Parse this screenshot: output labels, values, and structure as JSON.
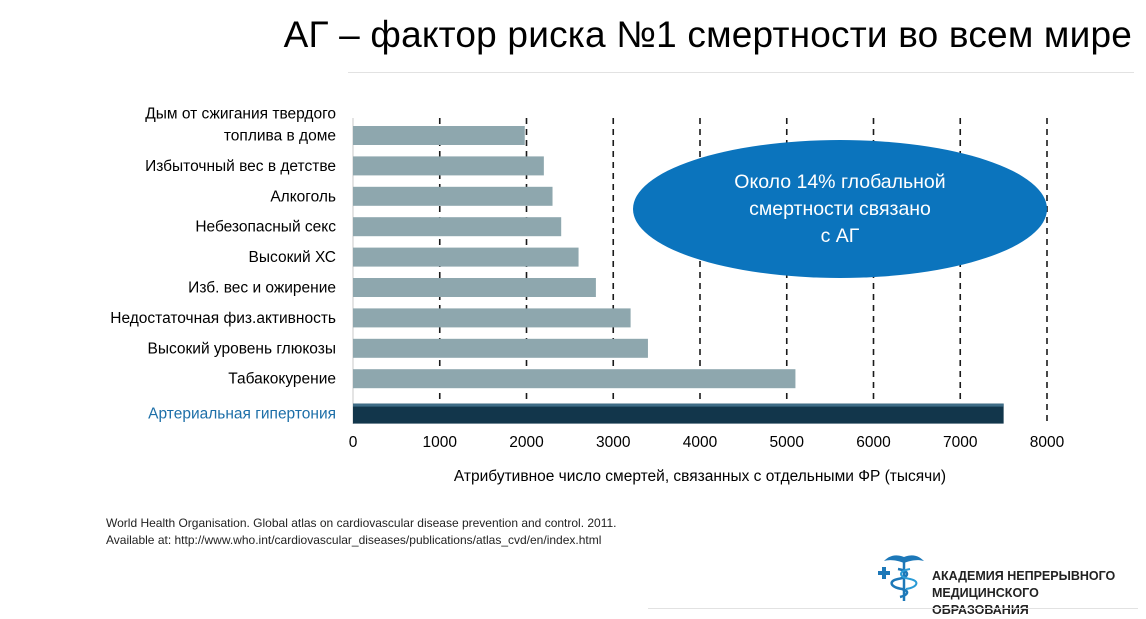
{
  "title": "АГ – фактор риска №1 смертности во всем мире",
  "callout": "Около 14% глобальной\nсмертности связано\nс АГ",
  "source": "World Health Organisation. Global atlas on cardiovascular disease prevention and control. 2011.\nAvailable at: http://www.who.int/cardiovascular_diseases/publications/atlas_cvd/en/index.html",
  "logo_text": "АКАДЕМИЯ НЕПРЕРЫВНОГО\nМЕДИЦИНСКОГО ОБРАЗОВАНИЯ",
  "colors": {
    "bar": "#8ea7ae",
    "highlight_bar": "#12364b",
    "highlight_label": "#1d6fa8",
    "callout": "#0b74bd"
  },
  "chart_data": {
    "type": "bar",
    "orientation": "horizontal",
    "categories": [
      [
        "Дым от сжигания твердого",
        "топлива в доме"
      ],
      [
        "Избыточный вес в детстве"
      ],
      [
        "Алкоголь"
      ],
      [
        "Небезопасный секс"
      ],
      [
        "Высокий ХС"
      ],
      [
        "Изб. вес и ожирение"
      ],
      [
        "Недостаточная физ.активность"
      ],
      [
        "Высокий уровень глюкозы"
      ],
      [
        "Табакокурение"
      ],
      [
        "Артериальная гипертония"
      ]
    ],
    "values": [
      1980,
      2200,
      2300,
      2400,
      2600,
      2800,
      3200,
      3400,
      5100,
      7500
    ],
    "highlight_index": 9,
    "xlabel": "Атрибутивное число смертей, связанных с отдельными ФР (тысячи)",
    "ylabel": "",
    "xlim": [
      0,
      8000
    ],
    "xticks": [
      0,
      1000,
      2000,
      3000,
      4000,
      5000,
      6000,
      7000,
      8000
    ],
    "grid": "vertical dashed"
  }
}
